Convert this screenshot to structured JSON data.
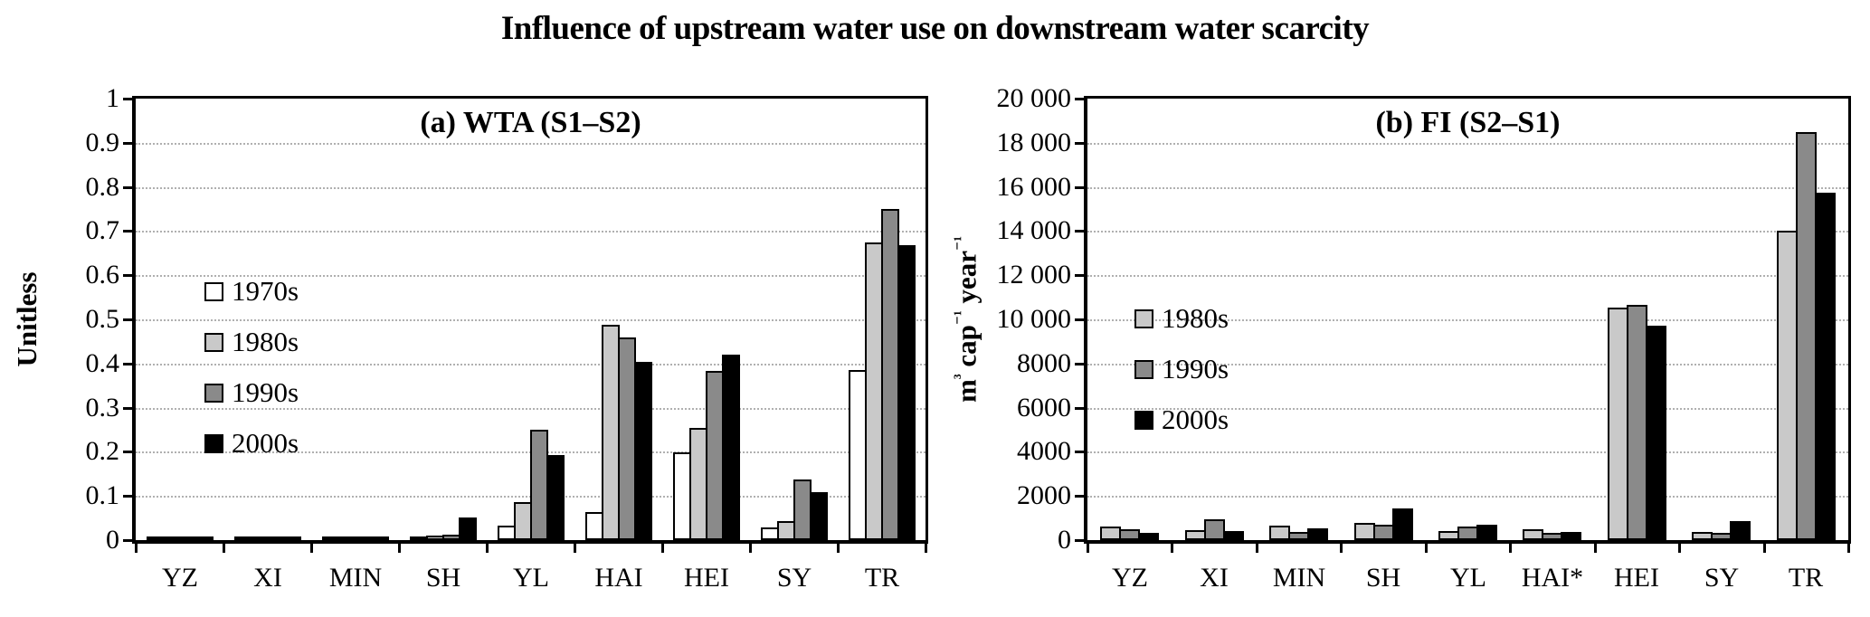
{
  "figure_title": "Influence of upstream water use on downstream water scarcity",
  "chart_data": [
    {
      "type": "bar",
      "panel_title": "(a) WTA (S1–S2)",
      "ylabel": "Unitless",
      "ylabel_parts": [
        {
          "t": "Unitless"
        }
      ],
      "ylim": [
        0,
        1
      ],
      "grid": "horizontal-dotted",
      "legend_position": "inside-upper-left",
      "yticks": [
        {
          "value": 1,
          "label": "1"
        },
        {
          "value": 0.9,
          "label": "0.9"
        },
        {
          "value": 0.8,
          "label": "0.8"
        },
        {
          "value": 0.7,
          "label": "0.7"
        },
        {
          "value": 0.6,
          "label": "0.6"
        },
        {
          "value": 0.5,
          "label": "0.5"
        },
        {
          "value": 0.4,
          "label": "0.4"
        },
        {
          "value": 0.3,
          "label": "0.3"
        },
        {
          "value": 0.2,
          "label": "0.2"
        },
        {
          "value": 0.1,
          "label": "0.1"
        },
        {
          "value": 0,
          "label": "0"
        }
      ],
      "categories": [
        "YZ",
        "XI",
        "MIN",
        "SH",
        "YL",
        "HAI",
        "HEI",
        "SY",
        "TR"
      ],
      "series": [
        {
          "name": "1970s",
          "color": "#ffffff",
          "values": [
            0.003,
            0.002,
            0.009,
            0.004,
            0.033,
            0.063,
            0.199,
            0.028,
            0.386
          ]
        },
        {
          "name": "1980s",
          "color": "#c9c9c9",
          "values": [
            0.005,
            0.004,
            0.008,
            0.011,
            0.086,
            0.487,
            0.254,
            0.044,
            0.674
          ]
        },
        {
          "name": "1990s",
          "color": "#8a8a8a",
          "values": [
            0.004,
            0.008,
            0.007,
            0.013,
            0.251,
            0.459,
            0.384,
            0.138,
            0.75
          ]
        },
        {
          "name": "2000s",
          "color": "#000000",
          "values": [
            0.005,
            0.005,
            0.004,
            0.052,
            0.193,
            0.404,
            0.421,
            0.108,
            0.669
          ]
        }
      ]
    },
    {
      "type": "bar",
      "panel_title": "(b) FI (S2–S1)",
      "ylabel": "m³ cap⁻¹ year⁻¹",
      "ylabel_parts": [
        {
          "t": "m"
        },
        {
          "s": "3"
        },
        {
          "t": " cap"
        },
        {
          "s": "-1"
        },
        {
          "t": " year"
        },
        {
          "s": "-1"
        }
      ],
      "ylim": [
        0,
        20000
      ],
      "grid": "horizontal-dotted",
      "legend_position": "inside-upper-left",
      "yticks": [
        {
          "value": 20000,
          "label": "20 000"
        },
        {
          "value": 18000,
          "label": "18 000"
        },
        {
          "value": 16000,
          "label": "16 000"
        },
        {
          "value": 14000,
          "label": "14 000"
        },
        {
          "value": 12000,
          "label": "12 000"
        },
        {
          "value": 10000,
          "label": "10 000"
        },
        {
          "value": 8000,
          "label": "8000"
        },
        {
          "value": 6000,
          "label": "6000"
        },
        {
          "value": 4000,
          "label": "4000"
        },
        {
          "value": 2000,
          "label": "2000"
        },
        {
          "value": 0,
          "label": "0"
        }
      ],
      "categories": [
        "YZ",
        "XI",
        "MIN",
        "SH",
        "YL",
        "HAI*",
        "HEI",
        "SY",
        "TR"
      ],
      "series": [
        {
          "name": "1980s",
          "color": "#c9c9c9",
          "values": [
            600,
            460,
            640,
            780,
            430,
            475,
            10550,
            370,
            14000
          ]
        },
        {
          "name": "1990s",
          "color": "#8a8a8a",
          "values": [
            500,
            940,
            370,
            700,
            620,
            340,
            10650,
            345,
            18500
          ]
        },
        {
          "name": "2000s",
          "color": "#000000",
          "values": [
            340,
            395,
            545,
            1430,
            680,
            370,
            9700,
            850,
            15750
          ]
        }
      ]
    }
  ]
}
